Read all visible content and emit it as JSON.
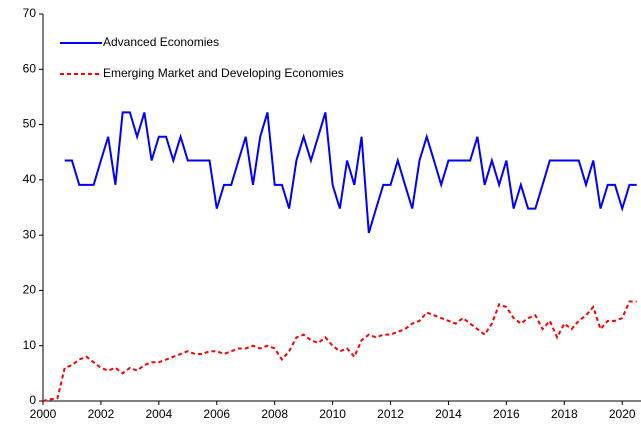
{
  "chart_data": {
    "type": "line",
    "x": [
      2000,
      2000.25,
      2000.5,
      2000.75,
      2001,
      2001.25,
      2001.5,
      2001.75,
      2002,
      2002.25,
      2002.5,
      2002.75,
      2003,
      2003.25,
      2003.5,
      2003.75,
      2004,
      2004.25,
      2004.5,
      2004.75,
      2005,
      2005.25,
      2005.5,
      2005.75,
      2006,
      2006.25,
      2006.5,
      2006.75,
      2007,
      2007.25,
      2007.5,
      2007.75,
      2008,
      2008.25,
      2008.5,
      2008.75,
      2009,
      2009.25,
      2009.5,
      2009.75,
      2010,
      2010.25,
      2010.5,
      2010.75,
      2011,
      2011.25,
      2011.5,
      2011.75,
      2012,
      2012.25,
      2012.5,
      2012.75,
      2013,
      2013.25,
      2013.5,
      2013.75,
      2014,
      2014.25,
      2014.5,
      2014.75,
      2015,
      2015.25,
      2015.5,
      2015.75,
      2016,
      2016.25,
      2016.5,
      2016.75,
      2017,
      2017.25,
      2017.5,
      2017.75,
      2018,
      2018.25,
      2018.5,
      2018.75,
      2019,
      2019.25,
      2019.5,
      2019.75,
      2020,
      2020.25,
      2020.5
    ],
    "series": [
      {
        "name": "Advanced Economies",
        "color": "#0000ff",
        "dash": false,
        "values": [
          null,
          null,
          null,
          43.5,
          43.5,
          39.1,
          39.1,
          39.1,
          43.5,
          47.8,
          39.1,
          52.2,
          52.2,
          47.8,
          52.2,
          43.5,
          47.8,
          47.8,
          43.5,
          47.8,
          43.5,
          43.5,
          43.5,
          43.5,
          34.8,
          39.1,
          39.1,
          43.5,
          47.8,
          39.1,
          47.8,
          52.2,
          39.1,
          39.1,
          34.8,
          43.5,
          47.8,
          43.5,
          47.8,
          52.2,
          39.1,
          34.8,
          43.5,
          39.1,
          47.8,
          30.4,
          34.8,
          39.1,
          39.1,
          43.5,
          39.1,
          34.8,
          43.5,
          47.8,
          43.5,
          39.1,
          43.5,
          43.5,
          43.5,
          43.5,
          47.8,
          39.1,
          43.5,
          39.1,
          43.5,
          34.8,
          39.1,
          34.8,
          34.8,
          39.1,
          43.5,
          43.5,
          43.5,
          43.5,
          43.5,
          39.1,
          43.5,
          34.8,
          39.1,
          39.1,
          34.8,
          39.1,
          39.1
        ]
      },
      {
        "name": "Emerging Market and Developing Economies",
        "color": "#ff0000",
        "dash": true,
        "values": [
          0,
          0.3,
          0.5,
          6,
          6.5,
          7.5,
          8,
          7,
          6,
          5.5,
          6,
          5,
          6,
          5.5,
          6.5,
          7,
          7,
          7.5,
          8,
          8.5,
          9,
          8.5,
          8.5,
          9,
          9,
          8.5,
          9,
          9.5,
          9.5,
          10,
          9.5,
          10,
          9.5,
          7.5,
          9,
          11.5,
          12,
          11,
          10.5,
          11.5,
          10,
          9,
          9.5,
          8,
          11,
          12,
          11.5,
          12,
          12,
          12.5,
          13,
          14,
          14.5,
          16,
          15.5,
          15,
          14.5,
          14,
          15,
          14,
          13,
          12,
          14,
          17.5,
          17,
          15,
          14,
          15,
          15.5,
          13,
          14.5,
          11.5,
          14,
          13,
          14.5,
          15.5,
          17,
          13,
          14.5,
          14.5,
          15,
          18,
          18
        ]
      }
    ],
    "xlim": [
      2000,
      2020.6
    ],
    "xticks": [
      2000,
      2002,
      2004,
      2006,
      2008,
      2010,
      2012,
      2014,
      2016,
      2018,
      2020
    ],
    "ylim": [
      0,
      70
    ],
    "yticks": [
      0,
      10,
      20,
      30,
      40,
      50,
      60,
      70
    ],
    "legend": "upper left"
  }
}
